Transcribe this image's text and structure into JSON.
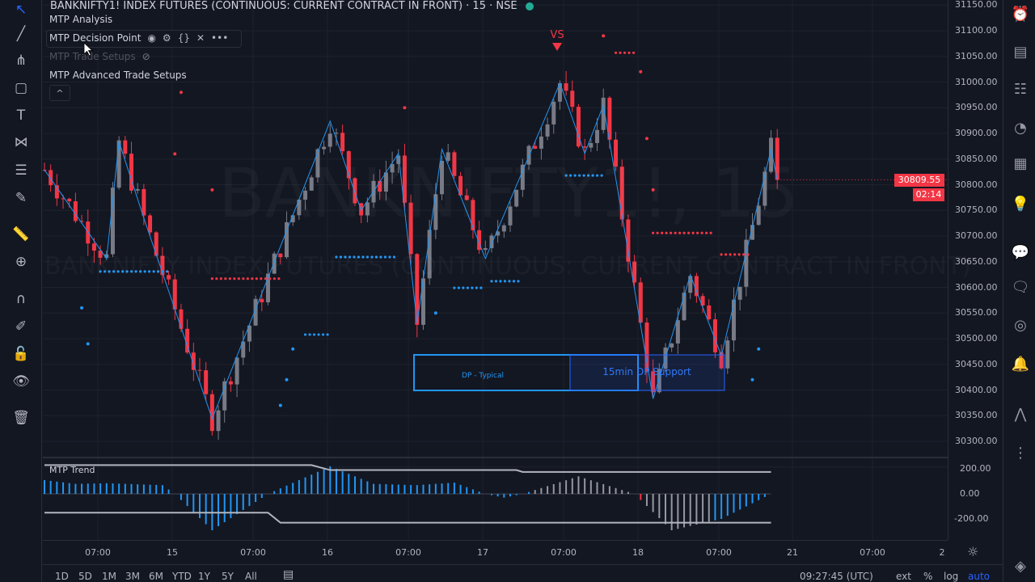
{
  "header": {
    "symbol_title": "BANKNIFTY1! INDEX FUTURES (CONTINUOUS: CURRENT CONTRACT IN FRONT) · 15 · NSE",
    "status_color": "#22ab94"
  },
  "watermark": {
    "symbol": "BANKNIFTY1!, 15",
    "description": "BANKNIFTY INDEX FUTURES (CONTINUOUS: CURRENT CONTRACT IN FRONT)"
  },
  "legend": {
    "indicators": [
      {
        "name": "MTP Analysis"
      },
      {
        "name": "MTP Decision Point",
        "icons": [
          "eye-icon",
          "gear-icon",
          "source-code-icon",
          "close-icon",
          "more-icon"
        ]
      },
      {
        "name": "MTP Trade Setups",
        "hidden": true
      },
      {
        "name": "MTP Advanced Trade Setups"
      }
    ],
    "collapse_icon": "chevron-up-icon"
  },
  "left_toolbar": [
    "cursor-icon",
    "trend-line-icon",
    "pitchfork-icon",
    "rectangle-icon",
    "text-icon",
    "pattern-icon",
    "prediction-icon",
    "brush-icon",
    "ruler-icon",
    "zoom-icon",
    "magnet-icon",
    "lock-drawings-icon",
    "lock-icon",
    "eye-icon",
    "trash-icon"
  ],
  "right_toolbar": [
    "alarm-clock-icon",
    "news-icon",
    "watchlist-icon",
    "hotlist-icon",
    "calendar-icon",
    "ideas-icon",
    "chat-icon",
    "messages-icon",
    "streams-icon",
    "notifications-icon",
    "signal-icon",
    "order-panel-icon",
    "layers-icon"
  ],
  "price_axis": {
    "labels": [
      "31150.00",
      "31100.00",
      "31050.00",
      "31000.00",
      "30950.00",
      "30900.00",
      "30850.00",
      "30800.00",
      "30750.00",
      "30700.00",
      "30650.00",
      "30600.00",
      "30550.00",
      "30500.00",
      "30450.00",
      "30400.00",
      "30350.00",
      "30300.00"
    ],
    "last_price": "30809.55",
    "countdown": "02:14",
    "last_color": "#f23645"
  },
  "chart_annotations": {
    "vs_label": "VS",
    "dp_typical": "DP - Typical",
    "dp_support": "15min DP Support"
  },
  "zigzag": [
    [
      0,
      30829
    ],
    [
      10,
      30656
    ],
    [
      12,
      30884
    ],
    [
      16,
      30735
    ],
    [
      27,
      30344
    ],
    [
      46,
      30924
    ],
    [
      51,
      30750
    ],
    [
      57,
      30861
    ],
    [
      60,
      30530
    ],
    [
      64,
      30869
    ],
    [
      71,
      30656
    ],
    [
      83,
      30998
    ],
    [
      87,
      30861
    ],
    [
      90,
      30955
    ],
    [
      98,
      30383
    ],
    [
      104,
      30624
    ],
    [
      109,
      30467
    ],
    [
      117,
      30869
    ],
    [
      118,
      30809.55
    ]
  ],
  "levels": [
    {
      "price": 30631,
      "from": 9,
      "to": 20,
      "color": "#2196f3"
    },
    {
      "price": 30659,
      "from": 47,
      "to": 57,
      "color": "#2196f3"
    },
    {
      "price": 30508,
      "from": 42,
      "to": 46,
      "color": "#2196f3"
    },
    {
      "price": 30599,
      "from": 66,
      "to": 71,
      "color": "#2196f3"
    },
    {
      "price": 30612,
      "from": 72,
      "to": 77,
      "color": "#2196f3"
    },
    {
      "price": 30818,
      "from": 84,
      "to": 90,
      "color": "#2196f3"
    },
    {
      "price": 30617,
      "from": 27,
      "to": 38,
      "color": "#f23645"
    },
    {
      "price": 31057,
      "from": 92,
      "to": 95,
      "color": "#f23645"
    },
    {
      "price": 30706,
      "from": 98,
      "to": 108,
      "color": "#f23645"
    },
    {
      "price": 30664,
      "from": 109,
      "to": 114,
      "color": "#f23645"
    }
  ],
  "indicator": {
    "name": "MTP Trend",
    "labels": [
      "200.00",
      "0.00",
      "-200.00"
    ],
    "oscillator": [
      [
        0,
        110
      ],
      [
        5,
        80
      ],
      [
        10,
        85
      ],
      [
        19,
        70
      ],
      [
        21,
        0
      ],
      [
        27,
        -290
      ],
      [
        36,
        0
      ],
      [
        46,
        220
      ],
      [
        53,
        80
      ],
      [
        60,
        70
      ],
      [
        66,
        90
      ],
      [
        71,
        0
      ],
      [
        74,
        -30
      ],
      [
        77,
        0
      ],
      [
        86,
        140
      ],
      [
        95,
        0
      ],
      [
        101,
        -290
      ],
      [
        109,
        -200
      ],
      [
        117,
        0
      ]
    ],
    "upper_band": [
      [
        0,
        230
      ],
      [
        43,
        230
      ],
      [
        46,
        190
      ],
      [
        76,
        190
      ],
      [
        77,
        175
      ],
      [
        117,
        175
      ]
    ],
    "lower_band": [
      [
        0,
        -150
      ],
      [
        36,
        -150
      ],
      [
        38,
        -230
      ],
      [
        117,
        -230
      ]
    ]
  },
  "time_axis": {
    "labels": [
      "07:00",
      "15",
      "07:00",
      "16",
      "07:00",
      "17",
      "07:00",
      "18",
      "07:00",
      "21",
      "07:00",
      "2"
    ]
  },
  "bottom_bar": {
    "ranges": [
      "1D",
      "5D",
      "1M",
      "3M",
      "6M",
      "YTD",
      "1Y",
      "5Y",
      "All"
    ],
    "clock": "09:27:45 (UTC)",
    "ext": "ext",
    "percent": "%",
    "log": "log",
    "auto": "auto"
  }
}
